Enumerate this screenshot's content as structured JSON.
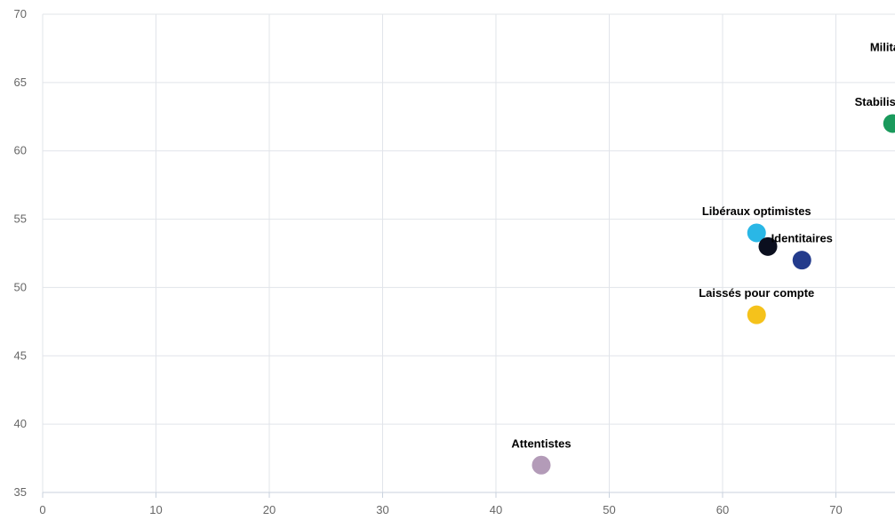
{
  "chart_data": {
    "type": "scatter",
    "xlim": [
      0,
      75.5
    ],
    "ylim": [
      35,
      70
    ],
    "x_ticks": [
      0,
      10,
      20,
      30,
      40,
      50,
      60,
      70
    ],
    "y_ticks": [
      35,
      40,
      45,
      50,
      55,
      60,
      65,
      70
    ],
    "grid": true,
    "points": [
      {
        "label": "Militants désabu",
        "x": 77,
        "y": 66,
        "color": "#d9534f"
      },
      {
        "label": "Stabilisateurs",
        "x": 75,
        "y": 62,
        "color": "#1a9a5c"
      },
      {
        "label": "Libéraux optimistes",
        "x": 63,
        "y": 54,
        "color": "#2ab7e6"
      },
      {
        "label": "Identitaires",
        "x": 67,
        "y": 52,
        "color": "#233b8c"
      },
      {
        "label": "",
        "x": 64,
        "y": 53,
        "color": "#0b0f1f"
      },
      {
        "label": "Laissés pour compte",
        "x": 63,
        "y": 48,
        "color": "#f5c21b"
      },
      {
        "label": "Attentistes",
        "x": 44,
        "y": 37,
        "color": "#b39bb8"
      }
    ]
  }
}
